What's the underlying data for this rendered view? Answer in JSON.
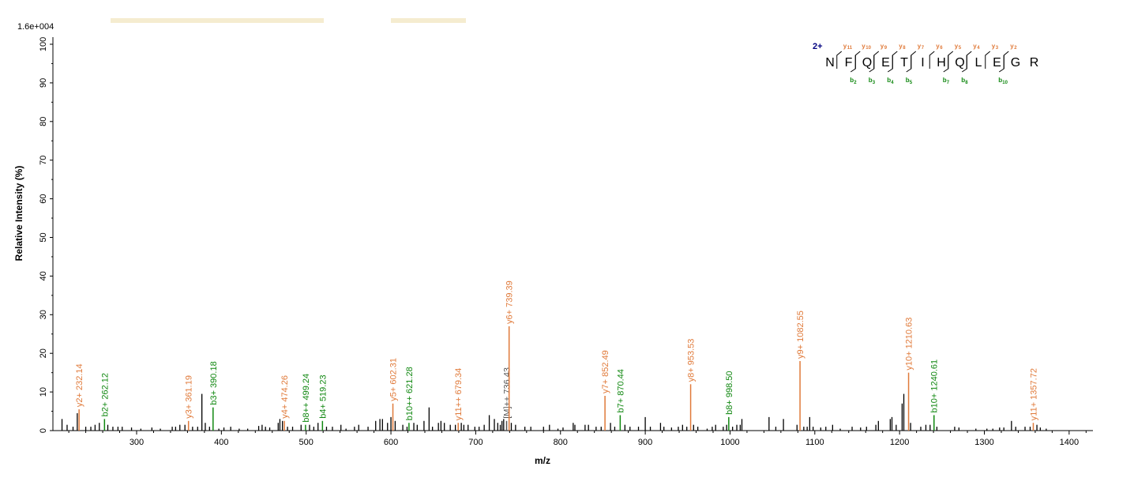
{
  "colors": {
    "y_ion": "#e07a3a",
    "b_ion": "#118811",
    "other": "#000000",
    "charge": "#000080",
    "watermark": "#f5ecd0"
  },
  "chart_data": {
    "type": "bar",
    "intensity_scale": "1.6e+004",
    "xlabel": "m/z",
    "ylabel": "Relative   Intensity (%)",
    "xlim": [
      200,
      1420
    ],
    "ylim": [
      0,
      100
    ],
    "xticks": [
      300,
      400,
      500,
      600,
      700,
      800,
      900,
      1000,
      1100,
      1200,
      1300,
      1400
    ],
    "yticks": [
      0,
      10,
      20,
      30,
      40,
      50,
      60,
      70,
      80,
      90,
      100
    ],
    "annotated_peaks": [
      {
        "mz": 232.14,
        "intensity": 5.5,
        "label": "y2+ 232.14",
        "ion": "y"
      },
      {
        "mz": 262.12,
        "intensity": 3.0,
        "label": "b2+ 262.12",
        "ion": "b"
      },
      {
        "mz": 361.19,
        "intensity": 2.5,
        "label": "y3+ 361.19",
        "ion": "y"
      },
      {
        "mz": 390.18,
        "intensity": 6.0,
        "label": "b3+ 390.18",
        "ion": "b"
      },
      {
        "mz": 474.26,
        "intensity": 2.5,
        "label": "y4+ 474.26",
        "ion": "y"
      },
      {
        "mz": 499.24,
        "intensity": 1.5,
        "label": "b8++ 499.24",
        "ion": "b"
      },
      {
        "mz": 519.23,
        "intensity": 2.5,
        "label": "b4+ 519.23",
        "ion": "b"
      },
      {
        "mz": 602.31,
        "intensity": 7.0,
        "label": "y5+ 602.31",
        "ion": "y"
      },
      {
        "mz": 621.28,
        "intensity": 2.0,
        "label": "b10++ 621.28",
        "ion": "b"
      },
      {
        "mz": 679.34,
        "intensity": 2.0,
        "label": "y11++ 679.34",
        "ion": "y"
      },
      {
        "mz": 736.43,
        "intensity": 2.5,
        "label": "[M]++ 736.43",
        "ion": "other"
      },
      {
        "mz": 739.39,
        "intensity": 27.0,
        "label": "y6+ 739.39",
        "ion": "y"
      },
      {
        "mz": 852.49,
        "intensity": 9.0,
        "label": "y7+ 852.49",
        "ion": "y"
      },
      {
        "mz": 870.44,
        "intensity": 4.0,
        "label": "b7+ 870.44",
        "ion": "b"
      },
      {
        "mz": 953.53,
        "intensity": 12.0,
        "label": "y8+ 953.53",
        "ion": "y"
      },
      {
        "mz": 998.5,
        "intensity": 3.5,
        "label": "b8+ 998.50",
        "ion": "b"
      },
      {
        "mz": 1082.55,
        "intensity": 18.0,
        "label": "y9+ 1082.55",
        "ion": "y"
      },
      {
        "mz": 1210.63,
        "intensity": 15.0,
        "label": "y10+ 1210.63",
        "ion": "y"
      },
      {
        "mz": 1240.61,
        "intensity": 4.0,
        "label": "b10+ 1240.61",
        "ion": "b"
      },
      {
        "mz": 1357.72,
        "intensity": 2.0,
        "label": "y11+ 1357.72",
        "ion": "y"
      }
    ],
    "unlabeled_peaks": [
      [
        201,
        2
      ],
      [
        212,
        3
      ],
      [
        218,
        1.5
      ],
      [
        225,
        1
      ],
      [
        230,
        4.5
      ],
      [
        240,
        1
      ],
      [
        246,
        1
      ],
      [
        251,
        1.5
      ],
      [
        256,
        2
      ],
      [
        266,
        1.5
      ],
      [
        272,
        1
      ],
      [
        278,
        1
      ],
      [
        283,
        1
      ],
      [
        294,
        0.8
      ],
      [
        305,
        0.5
      ],
      [
        318,
        0.8
      ],
      [
        328,
        0.5
      ],
      [
        342,
        1
      ],
      [
        346,
        1
      ],
      [
        351,
        1.5
      ],
      [
        357,
        1.5
      ],
      [
        366,
        1
      ],
      [
        372,
        1
      ],
      [
        377,
        9.5
      ],
      [
        381,
        2
      ],
      [
        386,
        1
      ],
      [
        397,
        0.5
      ],
      [
        403,
        0.8
      ],
      [
        411,
        1
      ],
      [
        421,
        0.5
      ],
      [
        431,
        0.5
      ],
      [
        444,
        1.2
      ],
      [
        448,
        1.5
      ],
      [
        452,
        1
      ],
      [
        457,
        0.8
      ],
      [
        467,
        2
      ],
      [
        469,
        3
      ],
      [
        472,
        2.5
      ],
      [
        478,
        1
      ],
      [
        484,
        1
      ],
      [
        494,
        1.5
      ],
      [
        504,
        1.5
      ],
      [
        509,
        1
      ],
      [
        514,
        2
      ],
      [
        524,
        1
      ],
      [
        531,
        1
      ],
      [
        541,
        1.5
      ],
      [
        547,
        0.5
      ],
      [
        557,
        1
      ],
      [
        562,
        1.5
      ],
      [
        573,
        1
      ],
      [
        582,
        2.5
      ],
      [
        587,
        3
      ],
      [
        590,
        3
      ],
      [
        596,
        2
      ],
      [
        600,
        3.5
      ],
      [
        605,
        2.5
      ],
      [
        614,
        1.5
      ],
      [
        619,
        1
      ],
      [
        627,
        2
      ],
      [
        631,
        1.5
      ],
      [
        639,
        2.5
      ],
      [
        645,
        6
      ],
      [
        649,
        1
      ],
      [
        656,
        2
      ],
      [
        659,
        2.5
      ],
      [
        663,
        2
      ],
      [
        670,
        1.5
      ],
      [
        676,
        1.5
      ],
      [
        683,
        2
      ],
      [
        686,
        1.5
      ],
      [
        691,
        1.5
      ],
      [
        699,
        1
      ],
      [
        704,
        1
      ],
      [
        710,
        1.5
      ],
      [
        716,
        4
      ],
      [
        722,
        3
      ],
      [
        726,
        2
      ],
      [
        729,
        1.5
      ],
      [
        731,
        2.5
      ],
      [
        733,
        3
      ],
      [
        742,
        2
      ],
      [
        747,
        1.5
      ],
      [
        758,
        1
      ],
      [
        765,
        1
      ],
      [
        780,
        1
      ],
      [
        787,
        1.5
      ],
      [
        797,
        0.5
      ],
      [
        803,
        0.8
      ],
      [
        815,
        2
      ],
      [
        817,
        1.5
      ],
      [
        829,
        1.5
      ],
      [
        833,
        1.5
      ],
      [
        842,
        1
      ],
      [
        848,
        1
      ],
      [
        859,
        2
      ],
      [
        864,
        1
      ],
      [
        876,
        1.5
      ],
      [
        882,
        1
      ],
      [
        892,
        1
      ],
      [
        900,
        3.5
      ],
      [
        906,
        1
      ],
      [
        918,
        2
      ],
      [
        922,
        1
      ],
      [
        931,
        0.8
      ],
      [
        939,
        1
      ],
      [
        944,
        1.5
      ],
      [
        949,
        1
      ],
      [
        957,
        1.5
      ],
      [
        962,
        1
      ],
      [
        973,
        0.5
      ],
      [
        979,
        1
      ],
      [
        983,
        1.5
      ],
      [
        992,
        1
      ],
      [
        996,
        1.5
      ],
      [
        1003,
        1
      ],
      [
        1008,
        1.5
      ],
      [
        1012,
        1.5
      ],
      [
        1014,
        3
      ],
      [
        1046,
        3.5
      ],
      [
        1054,
        1
      ],
      [
        1063,
        3
      ],
      [
        1079,
        1.5
      ],
      [
        1087,
        1
      ],
      [
        1091,
        1
      ],
      [
        1094,
        3.5
      ],
      [
        1098,
        1
      ],
      [
        1107,
        0.8
      ],
      [
        1113,
        1
      ],
      [
        1121,
        1.5
      ],
      [
        1130,
        0.5
      ],
      [
        1144,
        1
      ],
      [
        1154,
        0.8
      ],
      [
        1161,
        1
      ],
      [
        1172,
        1.5
      ],
      [
        1175,
        2.5
      ],
      [
        1189,
        3
      ],
      [
        1191,
        3.5
      ],
      [
        1196,
        1.5
      ],
      [
        1203,
        7
      ],
      [
        1205,
        9.5
      ],
      [
        1213,
        2
      ],
      [
        1225,
        1
      ],
      [
        1231,
        1.5
      ],
      [
        1236,
        1.5
      ],
      [
        1244,
        1
      ],
      [
        1265,
        1
      ],
      [
        1270,
        0.8
      ],
      [
        1290,
        0.5
      ],
      [
        1303,
        0.5
      ],
      [
        1310,
        0.5
      ],
      [
        1318,
        0.8
      ],
      [
        1323,
        0.8
      ],
      [
        1332,
        2.5
      ],
      [
        1337,
        1
      ],
      [
        1348,
        1
      ],
      [
        1354,
        1
      ],
      [
        1362,
        1.5
      ],
      [
        1366,
        0.8
      ],
      [
        1373,
        0.5
      ]
    ],
    "sequence": {
      "charge_label": "2+",
      "residues": [
        "N",
        "F",
        "Q",
        "E",
        "T",
        "I",
        "H",
        "Q",
        "L",
        "E",
        "G",
        "R"
      ],
      "y_ions": [
        {
          "after": 1,
          "label": "y",
          "num": "11"
        },
        {
          "after": 2,
          "label": "y",
          "num": "10"
        },
        {
          "after": 3,
          "label": "y",
          "num": "9"
        },
        {
          "after": 4,
          "label": "y",
          "num": "8"
        },
        {
          "after": 5,
          "label": "y",
          "num": "7"
        },
        {
          "after": 6,
          "label": "y",
          "num": "6"
        },
        {
          "after": 7,
          "label": "y",
          "num": "5"
        },
        {
          "after": 8,
          "label": "y",
          "num": "4"
        },
        {
          "after": 9,
          "label": "y",
          "num": "3"
        },
        {
          "after": 10,
          "label": "y",
          "num": "2"
        }
      ],
      "b_ions": [
        {
          "after": 2,
          "label": "b",
          "num": "2"
        },
        {
          "after": 3,
          "label": "b",
          "num": "3"
        },
        {
          "after": 4,
          "label": "b",
          "num": "4"
        },
        {
          "after": 5,
          "label": "b",
          "num": "5"
        },
        {
          "after": 7,
          "label": "b",
          "num": "7"
        },
        {
          "after": 8,
          "label": "b",
          "num": "8"
        },
        {
          "after": 10,
          "label": "b",
          "num": "10"
        }
      ]
    }
  }
}
